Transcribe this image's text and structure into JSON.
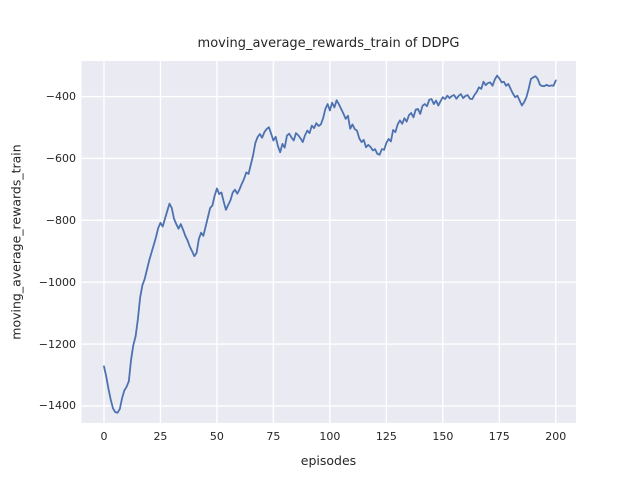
{
  "colors": {
    "figure_bg": "#ffffff",
    "plot_bg": "#eaeaf2",
    "grid": "#ffffff",
    "line": "#4c72b0",
    "text": "#262626"
  },
  "chart_data": {
    "type": "line",
    "title": "moving_average_rewards_train of DDPG",
    "xlabel": "episodes",
    "ylabel": "moving_average_rewards_train",
    "x_ticks": [
      0,
      25,
      50,
      75,
      100,
      125,
      150,
      175,
      200
    ],
    "y_ticks": [
      -400,
      -600,
      -800,
      -1000,
      -1200,
      -1400
    ],
    "xlim": [
      -9.95,
      208.95
    ],
    "ylim": [
      -1455,
      -285
    ],
    "grid": true,
    "legend": null,
    "style": "seaborn-darkgrid",
    "series": [
      {
        "name": "moving_average_rewards_train",
        "color": "#4c72b0",
        "x_start": 0,
        "x_step": 1,
        "y": [
          -1272,
          -1305,
          -1345,
          -1380,
          -1408,
          -1420,
          -1422,
          -1410,
          -1375,
          -1350,
          -1338,
          -1320,
          -1250,
          -1203,
          -1175,
          -1120,
          -1050,
          -1010,
          -990,
          -960,
          -930,
          -905,
          -880,
          -855,
          -825,
          -808,
          -820,
          -795,
          -770,
          -746,
          -760,
          -795,
          -812,
          -827,
          -812,
          -830,
          -850,
          -865,
          -885,
          -900,
          -916,
          -905,
          -860,
          -840,
          -850,
          -820,
          -790,
          -760,
          -752,
          -720,
          -697,
          -715,
          -710,
          -740,
          -766,
          -750,
          -735,
          -710,
          -701,
          -714,
          -700,
          -682,
          -666,
          -645,
          -650,
          -620,
          -590,
          -550,
          -531,
          -521,
          -533,
          -515,
          -505,
          -499,
          -520,
          -542,
          -530,
          -560,
          -580,
          -553,
          -565,
          -526,
          -520,
          -532,
          -542,
          -518,
          -525,
          -535,
          -547,
          -525,
          -510,
          -518,
          -494,
          -502,
          -486,
          -495,
          -490,
          -470,
          -440,
          -424,
          -445,
          -420,
          -435,
          -412,
          -425,
          -440,
          -455,
          -472,
          -462,
          -504,
          -490,
          -505,
          -510,
          -535,
          -547,
          -540,
          -564,
          -556,
          -563,
          -574,
          -570,
          -585,
          -588,
          -570,
          -572,
          -550,
          -537,
          -545,
          -508,
          -515,
          -490,
          -477,
          -488,
          -470,
          -481,
          -460,
          -453,
          -467,
          -442,
          -440,
          -456,
          -430,
          -424,
          -431,
          -410,
          -408,
          -424,
          -413,
          -429,
          -415,
          -402,
          -408,
          -397,
          -405,
          -398,
          -395,
          -407,
          -398,
          -392,
          -405,
          -398,
          -395,
          -407,
          -408,
          -395,
          -385,
          -370,
          -375,
          -352,
          -363,
          -356,
          -354,
          -365,
          -345,
          -332,
          -341,
          -354,
          -352,
          -365,
          -359,
          -375,
          -390,
          -402,
          -397,
          -413,
          -429,
          -418,
          -402,
          -375,
          -343,
          -338,
          -334,
          -343,
          -362,
          -366,
          -366,
          -362,
          -366,
          -364,
          -365,
          -348
        ]
      }
    ]
  }
}
